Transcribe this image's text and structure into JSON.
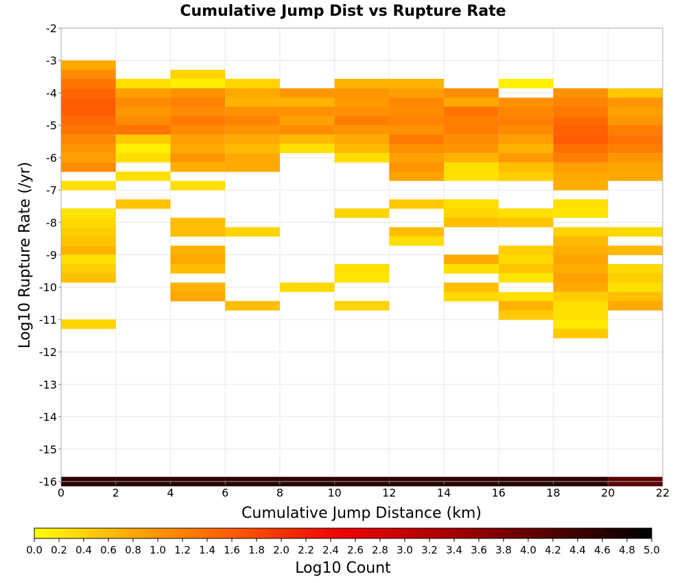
{
  "chart_data": {
    "type": "heatmap",
    "title": "Cumulative Jump Dist vs Rupture Rate",
    "xlabel": "Cumulative Jump Distance (km)",
    "ylabel": "Log10 Rupture Rate (/yr)",
    "xlim": [
      0,
      22
    ],
    "ylim": [
      -16,
      -2
    ],
    "xticks": [
      "0",
      "2",
      "4",
      "6",
      "8",
      "10",
      "12",
      "14",
      "16",
      "18",
      "20",
      "22"
    ],
    "yticks": [
      "-2",
      "-3",
      "-4",
      "-5",
      "-6",
      "-7",
      "-8",
      "-9",
      "-10",
      "-11",
      "-12",
      "-13",
      "-14",
      "-15",
      "-16"
    ],
    "x_bin_width_km": 2,
    "y_bin_height_log10": 0.286,
    "colorbar": {
      "label": "Log10 Count",
      "min": 0.0,
      "max": 5.0,
      "ticks": [
        "0.0",
        "0.2",
        "0.4",
        "0.6",
        "0.8",
        "1.0",
        "1.2",
        "1.4",
        "1.6",
        "1.8",
        "2.0",
        "2.2",
        "2.4",
        "2.6",
        "2.8",
        "3.0",
        "3.2",
        "3.4",
        "3.6",
        "3.8",
        "4.0",
        "4.2",
        "4.4",
        "4.6",
        "4.8",
        "5.0"
      ],
      "colors": [
        "#ffff00",
        "#ffa500",
        "#ff5500",
        "#ee0000",
        "#aa0000",
        "#550000",
        "#000000"
      ]
    },
    "cells": [
      [
        0,
        -3.14,
        0.8
      ],
      [
        0,
        -3.43,
        1.1
      ],
      [
        0,
        -3.71,
        1.35
      ],
      [
        0,
        -4.0,
        1.5
      ],
      [
        0,
        -4.29,
        1.6
      ],
      [
        0,
        -4.57,
        1.6
      ],
      [
        0,
        -4.86,
        1.45
      ],
      [
        0,
        -5.14,
        1.35
      ],
      [
        0,
        -5.43,
        1.15
      ],
      [
        0,
        -5.71,
        1.0
      ],
      [
        0,
        -6.0,
        0.9
      ],
      [
        0,
        -6.29,
        1.1
      ],
      [
        0,
        -6.86,
        0.3
      ],
      [
        0,
        -7.71,
        0.25
      ],
      [
        0,
        -8.0,
        0.35
      ],
      [
        0,
        -8.29,
        0.45
      ],
      [
        0,
        -8.57,
        0.55
      ],
      [
        0,
        -8.86,
        0.7
      ],
      [
        0,
        -9.14,
        0.3
      ],
      [
        0,
        -9.43,
        0.45
      ],
      [
        0,
        -9.71,
        0.6
      ],
      [
        0,
        -11.14,
        0.4
      ],
      [
        0,
        -16.0,
        4.6
      ],
      [
        2,
        -3.71,
        0.3
      ],
      [
        2,
        -4.0,
        0.9
      ],
      [
        2,
        -4.29,
        1.1
      ],
      [
        2,
        -4.57,
        1.0
      ],
      [
        2,
        -4.86,
        1.1
      ],
      [
        2,
        -5.14,
        1.35
      ],
      [
        2,
        -5.43,
        0.5
      ],
      [
        2,
        -5.71,
        0.15
      ],
      [
        2,
        -6.0,
        0.3
      ],
      [
        2,
        -6.57,
        0.3
      ],
      [
        2,
        -7.43,
        0.55
      ],
      [
        2,
        -16.0,
        4.6
      ],
      [
        4,
        -3.43,
        0.4
      ],
      [
        4,
        -3.71,
        0.15
      ],
      [
        4,
        -4.0,
        1.05
      ],
      [
        4,
        -4.29,
        1.2
      ],
      [
        4,
        -4.57,
        1.1
      ],
      [
        4,
        -4.86,
        1.3
      ],
      [
        4,
        -5.14,
        1.1
      ],
      [
        4,
        -5.43,
        0.9
      ],
      [
        4,
        -5.71,
        0.8
      ],
      [
        4,
        -6.0,
        1.0
      ],
      [
        4,
        -6.29,
        0.75
      ],
      [
        4,
        -6.86,
        0.3
      ],
      [
        4,
        -8.0,
        0.6
      ],
      [
        4,
        -8.29,
        0.6
      ],
      [
        4,
        -8.86,
        0.7
      ],
      [
        4,
        -9.14,
        0.8
      ],
      [
        4,
        -9.43,
        0.6
      ],
      [
        4,
        -10.0,
        0.7
      ],
      [
        4,
        -10.29,
        0.8
      ],
      [
        4,
        -16.0,
        4.6
      ],
      [
        6,
        -3.71,
        0.4
      ],
      [
        6,
        -4.0,
        0.8
      ],
      [
        6,
        -4.29,
        0.7
      ],
      [
        6,
        -4.57,
        1.05
      ],
      [
        6,
        -4.86,
        1.2
      ],
      [
        6,
        -5.14,
        1.0
      ],
      [
        6,
        -5.43,
        0.8
      ],
      [
        6,
        -5.71,
        0.65
      ],
      [
        6,
        -6.0,
        0.8
      ],
      [
        6,
        -6.29,
        0.8
      ],
      [
        6,
        -8.29,
        0.4
      ],
      [
        6,
        -10.57,
        0.6
      ],
      [
        6,
        -16.0,
        4.6
      ],
      [
        8,
        -4.0,
        1.0
      ],
      [
        8,
        -4.29,
        0.7
      ],
      [
        8,
        -4.57,
        1.05
      ],
      [
        8,
        -4.86,
        0.9
      ],
      [
        8,
        -5.14,
        1.1
      ],
      [
        8,
        -5.43,
        0.65
      ],
      [
        8,
        -5.71,
        0.3
      ],
      [
        8,
        -10.0,
        0.35
      ],
      [
        8,
        -16.0,
        4.6
      ],
      [
        10,
        -3.71,
        0.7
      ],
      [
        10,
        -4.0,
        1.0
      ],
      [
        10,
        -4.29,
        0.95
      ],
      [
        10,
        -4.57,
        1.05
      ],
      [
        10,
        -4.86,
        1.25
      ],
      [
        10,
        -5.14,
        1.0
      ],
      [
        10,
        -5.43,
        0.8
      ],
      [
        10,
        -5.71,
        0.65
      ],
      [
        10,
        -6.0,
        0.3
      ],
      [
        10,
        -7.71,
        0.4
      ],
      [
        10,
        -9.43,
        0.3
      ],
      [
        10,
        -9.71,
        0.25
      ],
      [
        10,
        -10.57,
        0.4
      ],
      [
        10,
        -16.0,
        4.6
      ],
      [
        12,
        -3.71,
        0.7
      ],
      [
        12,
        -4.0,
        0.9
      ],
      [
        12,
        -4.29,
        1.15
      ],
      [
        12,
        -4.57,
        1.1
      ],
      [
        12,
        -4.86,
        1.2
      ],
      [
        12,
        -5.14,
        1.05
      ],
      [
        12,
        -5.43,
        1.3
      ],
      [
        12,
        -5.71,
        1.05
      ],
      [
        12,
        -6.0,
        0.9
      ],
      [
        12,
        -6.29,
        1.0
      ],
      [
        12,
        -6.57,
        0.85
      ],
      [
        12,
        -7.43,
        0.5
      ],
      [
        12,
        -8.29,
        0.6
      ],
      [
        12,
        -8.57,
        0.3
      ],
      [
        12,
        -16.0,
        4.6
      ],
      [
        14,
        -4.0,
        1.1
      ],
      [
        14,
        -4.29,
        0.8
      ],
      [
        14,
        -4.57,
        1.35
      ],
      [
        14,
        -4.86,
        1.25
      ],
      [
        14,
        -5.14,
        1.25
      ],
      [
        14,
        -5.43,
        1.1
      ],
      [
        14,
        -5.71,
        1.0
      ],
      [
        14,
        -6.0,
        0.7
      ],
      [
        14,
        -6.29,
        0.3
      ],
      [
        14,
        -6.57,
        0.3
      ],
      [
        14,
        -7.43,
        0.3
      ],
      [
        14,
        -7.71,
        0.4
      ],
      [
        14,
        -8.0,
        0.6
      ],
      [
        14,
        -9.14,
        0.8
      ],
      [
        14,
        -9.43,
        0.3
      ],
      [
        14,
        -10.0,
        0.6
      ],
      [
        14,
        -10.29,
        0.35
      ],
      [
        14,
        -16.0,
        4.6
      ],
      [
        16,
        -3.71,
        0.15
      ],
      [
        16,
        -4.29,
        1.05
      ],
      [
        16,
        -4.57,
        1.15
      ],
      [
        16,
        -4.86,
        1.25
      ],
      [
        16,
        -5.14,
        1.1
      ],
      [
        16,
        -5.43,
        0.9
      ],
      [
        16,
        -5.71,
        0.7
      ],
      [
        16,
        -6.0,
        0.95
      ],
      [
        16,
        -6.29,
        0.6
      ],
      [
        16,
        -6.57,
        0.45
      ],
      [
        16,
        -7.71,
        0.3
      ],
      [
        16,
        -8.0,
        0.55
      ],
      [
        16,
        -8.86,
        0.45
      ],
      [
        16,
        -9.14,
        0.35
      ],
      [
        16,
        -9.43,
        0.55
      ],
      [
        16,
        -9.71,
        0.25
      ],
      [
        16,
        -10.29,
        0.3
      ],
      [
        16,
        -10.57,
        0.7
      ],
      [
        16,
        -10.86,
        0.5
      ],
      [
        16,
        -16.0,
        4.6
      ],
      [
        18,
        -4.0,
        1.05
      ],
      [
        18,
        -4.29,
        1.2
      ],
      [
        18,
        -4.57,
        1.3
      ],
      [
        18,
        -4.86,
        1.45
      ],
      [
        18,
        -5.14,
        1.55
      ],
      [
        18,
        -5.43,
        1.6
      ],
      [
        18,
        -5.71,
        1.4
      ],
      [
        18,
        -6.0,
        1.25
      ],
      [
        18,
        -6.29,
        0.9
      ],
      [
        18,
        -6.57,
        0.8
      ],
      [
        18,
        -6.86,
        0.75
      ],
      [
        18,
        -7.43,
        0.3
      ],
      [
        18,
        -7.71,
        0.25
      ],
      [
        18,
        -8.29,
        0.4
      ],
      [
        18,
        -8.57,
        0.65
      ],
      [
        18,
        -8.86,
        0.75
      ],
      [
        18,
        -9.14,
        0.85
      ],
      [
        18,
        -9.43,
        0.75
      ],
      [
        18,
        -9.71,
        0.9
      ],
      [
        18,
        -10.0,
        0.8
      ],
      [
        18,
        -10.29,
        0.45
      ],
      [
        18,
        -10.57,
        0.3
      ],
      [
        18,
        -10.86,
        0.3
      ],
      [
        18,
        -11.14,
        0.2
      ],
      [
        18,
        -11.43,
        0.5
      ],
      [
        18,
        -16.0,
        4.6
      ],
      [
        20,
        -4.0,
        0.5
      ],
      [
        20,
        -4.29,
        1.0
      ],
      [
        20,
        -4.57,
        0.9
      ],
      [
        20,
        -4.86,
        1.0
      ],
      [
        20,
        -5.14,
        1.25
      ],
      [
        20,
        -5.43,
        1.35
      ],
      [
        20,
        -5.71,
        1.25
      ],
      [
        20,
        -6.0,
        1.0
      ],
      [
        20,
        -6.29,
        0.85
      ],
      [
        20,
        -6.57,
        0.8
      ],
      [
        20,
        -8.29,
        0.35
      ],
      [
        20,
        -8.86,
        0.65
      ],
      [
        20,
        -9.43,
        0.35
      ],
      [
        20,
        -9.71,
        0.45
      ],
      [
        20,
        -10.0,
        0.3
      ],
      [
        20,
        -10.29,
        0.6
      ],
      [
        20,
        -10.57,
        0.8
      ],
      [
        20,
        -16.0,
        4.1
      ]
    ]
  }
}
